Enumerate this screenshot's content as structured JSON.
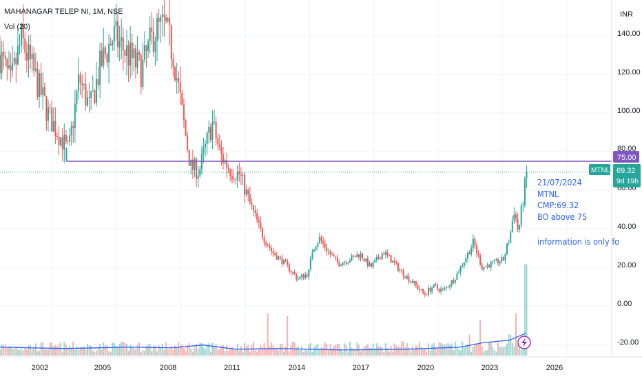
{
  "header": {
    "symbol_line": "MAHANAGAR TELEP NI, 1M, NSE",
    "volume_line": "Vol (20)"
  },
  "price_axis": {
    "currency": "INR",
    "ticks": [
      "140.00",
      "120.00",
      "100.00",
      "80.00",
      "60.00",
      "40.00",
      "20.00",
      "0.00",
      "-20.00"
    ]
  },
  "time_axis": {
    "ticks": [
      "2002",
      "2005",
      "2008",
      "2011",
      "2014",
      "2017",
      "2020",
      "2023",
      "2026"
    ]
  },
  "level_line": {
    "label": "75.00",
    "value": 75,
    "color": "#7e57c2"
  },
  "last_price": {
    "symbol": "MTNL",
    "value": "69.32",
    "countdown": "9d 19h",
    "color": "#26a69a"
  },
  "note": {
    "lines": [
      "21/07/2024",
      "MTNL",
      "CMP:69.32",
      "BO above 75",
      "information is only fo"
    ]
  },
  "colors": {
    "up": "#26a69a",
    "down": "#ef5350",
    "volume_ma": "#2962ff",
    "grid": "#f0f3fa"
  },
  "chart_data": {
    "type": "candlestick",
    "title": "MAHANAGAR TELEP NI, 1M, NSE",
    "interval": "1M",
    "y_range": [
      -27,
      148
    ],
    "x_range_years": [
      2000.0,
      2028.7
    ],
    "level_line_value": 75,
    "last_close": 69.32,
    "price_path": [
      [
        2000.0,
        130
      ],
      [
        2000.5,
        115
      ],
      [
        2001.0,
        138
      ],
      [
        2001.6,
        120
      ],
      [
        2002.3,
        98
      ],
      [
        2002.8,
        88
      ],
      [
        2003.2,
        80
      ],
      [
        2003.7,
        118
      ],
      [
        2004.2,
        102
      ],
      [
        2004.7,
        125
      ],
      [
        2005.3,
        140
      ],
      [
        2006.0,
        130
      ],
      [
        2006.6,
        122
      ],
      [
        2007.2,
        142
      ],
      [
        2007.7,
        145
      ],
      [
        2008.1,
        130
      ],
      [
        2008.5,
        100
      ],
      [
        2008.9,
        72
      ],
      [
        2009.3,
        70
      ],
      [
        2009.9,
        95
      ],
      [
        2010.3,
        78
      ],
      [
        2010.8,
        70
      ],
      [
        2011.2,
        68
      ],
      [
        2011.7,
        52
      ],
      [
        2012.2,
        38
      ],
      [
        2012.7,
        28
      ],
      [
        2013.3,
        22
      ],
      [
        2013.9,
        14
      ],
      [
        2014.4,
        17
      ],
      [
        2014.6,
        30
      ],
      [
        2014.9,
        35
      ],
      [
        2015.4,
        27
      ],
      [
        2015.8,
        22
      ],
      [
        2016.3,
        24
      ],
      [
        2016.8,
        27
      ],
      [
        2017.3,
        20
      ],
      [
        2017.9,
        28
      ],
      [
        2018.4,
        22
      ],
      [
        2018.8,
        17
      ],
      [
        2019.3,
        12
      ],
      [
        2019.8,
        6
      ],
      [
        2020.2,
        10
      ],
      [
        2020.7,
        8
      ],
      [
        2021.2,
        14
      ],
      [
        2021.7,
        24
      ],
      [
        2022.1,
        33
      ],
      [
        2022.5,
        20
      ],
      [
        2023.0,
        22
      ],
      [
        2023.5,
        24
      ],
      [
        2023.8,
        36
      ],
      [
        2024.0,
        50
      ],
      [
        2024.2,
        38
      ],
      [
        2024.5,
        62
      ],
      [
        2024.55,
        69.32
      ]
    ],
    "volume_spikes": [
      [
        2002.5,
        8
      ],
      [
        2005.6,
        10
      ],
      [
        2009.5,
        7
      ],
      [
        2012.5,
        36
      ],
      [
        2013.4,
        34
      ],
      [
        2015.8,
        10
      ],
      [
        2018.8,
        12
      ],
      [
        2021.9,
        18
      ],
      [
        2022.4,
        30
      ],
      [
        2023.8,
        18
      ],
      [
        2024.1,
        36
      ],
      [
        2024.55,
        78
      ]
    ],
    "volume_ma_path": [
      [
        2000.0,
        12
      ],
      [
        2003.0,
        10
      ],
      [
        2006.0,
        12
      ],
      [
        2008.0,
        11
      ],
      [
        2009.5,
        15
      ],
      [
        2011.0,
        9
      ],
      [
        2013.0,
        10
      ],
      [
        2016.0,
        8
      ],
      [
        2019.0,
        9
      ],
      [
        2021.5,
        12
      ],
      [
        2022.5,
        18
      ],
      [
        2023.8,
        22
      ],
      [
        2024.55,
        32
      ]
    ]
  }
}
